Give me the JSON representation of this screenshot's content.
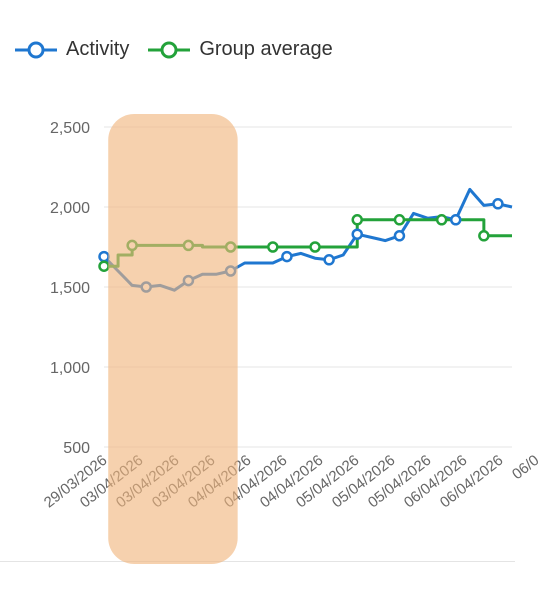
{
  "legend": {
    "activity_label": "Activity",
    "group_label": "Group average"
  },
  "colors": {
    "activity": "#1f77d0",
    "group": "#23a23a",
    "highlight": "#f0b47c",
    "grid": "#e6e6e6",
    "tick": "#666666"
  },
  "chart_data": {
    "type": "line",
    "title": "",
    "xlabel": "",
    "ylabel": "",
    "ylim": [
      500,
      2500
    ],
    "yticks": [
      "2,500",
      "2,000",
      "1,500",
      "1,000",
      "500"
    ],
    "ytick_values": [
      2500,
      2000,
      1500,
      1000,
      500
    ],
    "xticks": [
      "29/03/2026",
      "03/04/2026",
      "03/04/2026",
      "03/04/2026",
      "04/04/2026",
      "04/04/2026",
      "04/04/2026",
      "05/04/2026",
      "05/04/2026",
      "05/04/2026",
      "06/04/2026",
      "06/04/2026",
      "06/0"
    ],
    "x_count": 30,
    "highlight": {
      "x_start": 0.3,
      "x_end": 9.5
    },
    "series": [
      {
        "name": "Activity",
        "values": [
          1690,
          1600,
          1510,
          1500,
          1510,
          1480,
          1540,
          1580,
          1580,
          1600,
          1650,
          1650,
          1650,
          1690,
          1710,
          1680,
          1670,
          1700,
          1830,
          1810,
          1790,
          1820,
          1960,
          1930,
          1940,
          1920,
          2110,
          2010,
          2020,
          2000
        ],
        "markers": [
          0,
          3,
          6,
          9,
          12,
          15,
          18,
          21,
          24,
          27,
          30,
          33,
          35,
          38,
          40,
          42,
          45,
          48,
          51,
          55,
          59,
          62,
          66,
          70,
          74,
          77,
          79,
          83,
          88,
          92
        ]
      },
      {
        "name": "Group average",
        "values": [
          1630,
          1700,
          1760,
          1760,
          1760,
          1760,
          1760,
          1750,
          1750,
          1750,
          1750,
          1750,
          1750,
          1750,
          1750,
          1750,
          1750,
          1750,
          1920,
          1920,
          1920,
          1920,
          1920,
          1920,
          1920,
          1920,
          1920,
          1820,
          1820,
          1820
        ]
      }
    ]
  }
}
